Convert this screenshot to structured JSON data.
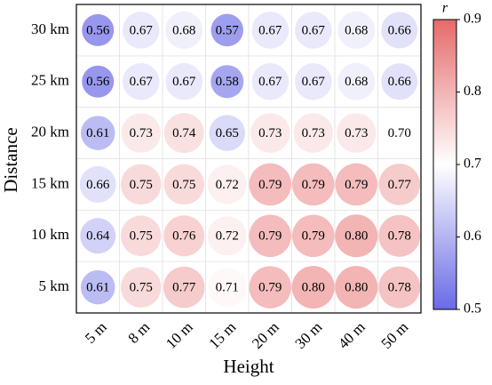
{
  "chart_data": {
    "type": "heatmap",
    "x_label": "Height",
    "y_label": "Distance",
    "colorbar_label": "r",
    "x_categories": [
      "5 m",
      "8 m",
      "10 m",
      "15 m",
      "20 m",
      "30 m",
      "40 m",
      "50 m"
    ],
    "y_categories": [
      "30 km",
      "25 km",
      "20 km",
      "15 km",
      "10 km",
      "5 km"
    ],
    "values": [
      [
        0.56,
        0.67,
        0.68,
        0.57,
        0.67,
        0.67,
        0.68,
        0.66
      ],
      [
        0.56,
        0.67,
        0.67,
        0.58,
        0.67,
        0.67,
        0.68,
        0.66
      ],
      [
        0.61,
        0.73,
        0.74,
        0.65,
        0.73,
        0.73,
        0.73,
        0.7
      ],
      [
        0.66,
        0.75,
        0.75,
        0.72,
        0.79,
        0.79,
        0.79,
        0.77
      ],
      [
        0.64,
        0.75,
        0.76,
        0.72,
        0.79,
        0.79,
        0.8,
        0.78
      ],
      [
        0.61,
        0.75,
        0.77,
        0.71,
        0.79,
        0.8,
        0.8,
        0.78
      ]
    ],
    "value_labels": [
      [
        "0.56",
        "0.67",
        "0.68",
        "0.57",
        "0.67",
        "0.67",
        "0.68",
        "0.66"
      ],
      [
        "0.56",
        "0.67",
        "0.67",
        "0.58",
        "0.67",
        "0.67",
        "0.68",
        "0.66"
      ],
      [
        "0.61",
        "0.73",
        "0.74",
        "0.65",
        "0.73",
        "0.73",
        "0.73",
        "0.70"
      ],
      [
        "0.66",
        "0.75",
        "0.75",
        "0.72",
        "0.79",
        "0.79",
        "0.79",
        "0.77"
      ],
      [
        "0.64",
        "0.75",
        "0.76",
        "0.72",
        "0.79",
        "0.79",
        "0.80",
        "0.78"
      ],
      [
        "0.61",
        "0.75",
        "0.77",
        "0.71",
        "0.79",
        "0.80",
        "0.80",
        "0.78"
      ]
    ],
    "clim": [
      0.5,
      0.9
    ],
    "cticks": [
      0.5,
      0.6,
      0.7,
      0.8,
      0.9
    ],
    "colormap": [
      "#6a6ae6",
      "#ffffff",
      "#e66a6a"
    ],
    "grid": true
  }
}
